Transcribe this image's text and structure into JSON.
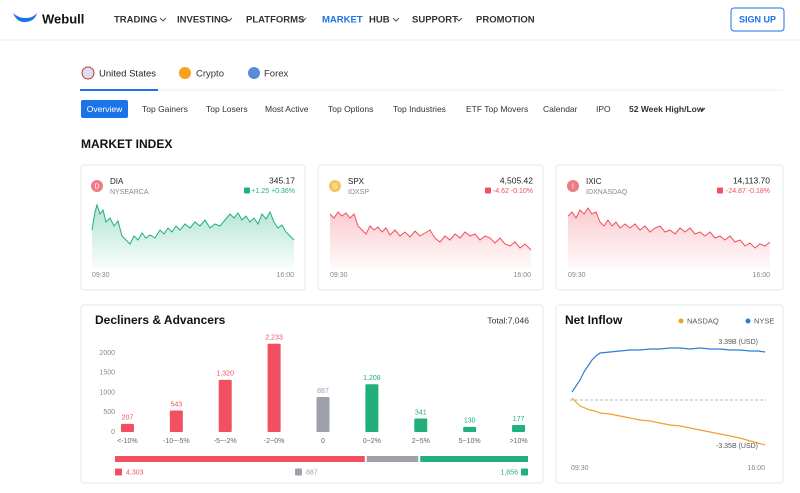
{
  "nav": {
    "logo": "Webull",
    "items": [
      "TRADING",
      "INVESTING",
      "PLATFORMS",
      "MARKET",
      "HUB",
      "SUPPORT",
      "PROMOTION"
    ],
    "signup": "SIGN UP"
  },
  "regions": [
    "United States",
    "Crypto",
    "Forex"
  ],
  "tabs": [
    "Overview",
    "Top Gainers",
    "Top Losers",
    "Most Active",
    "Top Options",
    "Top Industries",
    "ETF Top Movers",
    "Calendar",
    "IPO",
    "52 Week High/Low"
  ],
  "section_title": "MARKET INDEX",
  "indices": [
    {
      "icon": "D",
      "symbol": "DIA",
      "exchange": "NYSEARCA",
      "price": "345.17",
      "change": "+1.25 +0.36%",
      "start": "09:30",
      "end": "16:00"
    },
    {
      "icon": "S",
      "symbol": "SPX",
      "exchange": "IDXSP",
      "price": "4,505.42",
      "change": "-4.62 -0.10%",
      "start": "09:30",
      "end": "16:00"
    },
    {
      "icon": "I",
      "symbol": "IXIC",
      "exchange": "IDXNASDAQ",
      "price": "14,113.70",
      "change": "-24.87 -0.18%",
      "start": "09:30",
      "end": "16:00"
    }
  ],
  "chart_data": {
    "type": "bar",
    "title": "Decliners & Advancers",
    "total": "Total:7,046",
    "categories": [
      "<-10%",
      "-10~-5%",
      "-5~-2%",
      "-2~0%",
      "0",
      "0~2%",
      "2~5%",
      "5~10%",
      ">10%"
    ],
    "values": [
      207,
      543,
      1320,
      2233,
      887,
      1208,
      341,
      130,
      177
    ],
    "value_labels": [
      "207",
      "543",
      "1,320",
      "2,233",
      "887",
      "1,208",
      "341",
      "130",
      "177"
    ],
    "colors": [
      "#f0505f",
      "#f0505f",
      "#f0505f",
      "#f0505f",
      "#9ea0ab",
      "#21b07c",
      "#21b07c",
      "#21b07c",
      "#21b07c"
    ],
    "ylim": [
      0,
      2400
    ],
    "yticks": [
      0,
      500,
      1000,
      1500,
      2000
    ],
    "summary": [
      {
        "value": 4303,
        "label": "4,303",
        "color": "#f0505f"
      },
      {
        "value": 887,
        "label": "887",
        "color": "#9ea0ab"
      },
      {
        "value": 1856,
        "label": "1,856",
        "color": "#21b07c"
      }
    ]
  },
  "net_inflow": {
    "title": "Net Inflow",
    "legend": [
      {
        "name": "NASDAQ",
        "color": "#f0a030"
      },
      {
        "name": "NYSE",
        "color": "#2a7fd4"
      }
    ],
    "high": "3.39B (USD)",
    "low": "-3.35B (USD)",
    "start": "09:30",
    "end": "16:00"
  }
}
